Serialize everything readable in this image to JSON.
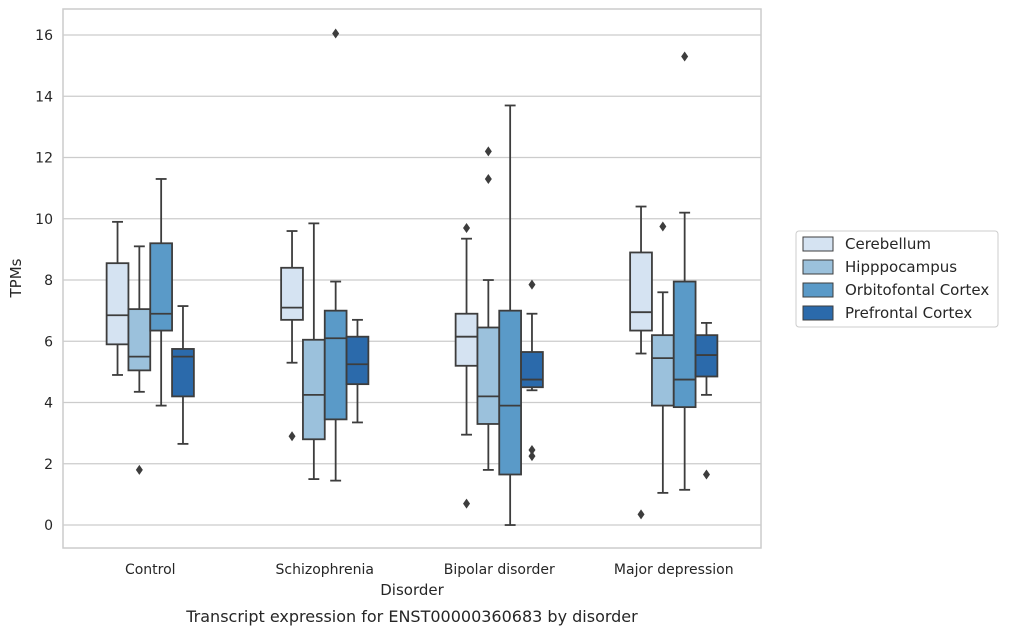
{
  "chart_data": {
    "type": "boxplot",
    "title": "",
    "caption": "Transcript expression for ENST00000360683 by disorder",
    "xlabel": "Disorder",
    "ylabel": "TPMs",
    "ylim": [
      -0.75,
      16.85
    ],
    "yticks": [
      0,
      2,
      4,
      6,
      8,
      10,
      12,
      14,
      16
    ],
    "grid": "horizontal",
    "legend_position": "right",
    "categories": [
      "Control",
      "Schizophrenia",
      "Bipolar disorder",
      "Major depression"
    ],
    "series": [
      {
        "name": "Cerebellum",
        "color": "#d5e3f2",
        "boxes": [
          {
            "whislo": 4.9,
            "q1": 5.9,
            "med": 6.85,
            "q3": 8.55,
            "whishi": 9.9,
            "fliers": []
          },
          {
            "whislo": 5.3,
            "q1": 6.7,
            "med": 7.1,
            "q3": 8.4,
            "whishi": 9.6,
            "fliers": [
              2.9
            ]
          },
          {
            "whislo": 2.95,
            "q1": 5.2,
            "med": 6.15,
            "q3": 6.9,
            "whishi": 9.35,
            "fliers": [
              0.7,
              9.7
            ]
          },
          {
            "whislo": 5.6,
            "q1": 6.35,
            "med": 6.95,
            "q3": 8.9,
            "whishi": 10.4,
            "fliers": [
              0.35
            ]
          }
        ]
      },
      {
        "name": "Hipppocampus",
        "color": "#9bc1dc",
        "boxes": [
          {
            "whislo": 4.35,
            "q1": 5.05,
            "med": 5.5,
            "q3": 7.05,
            "whishi": 9.1,
            "fliers": [
              1.8
            ]
          },
          {
            "whislo": 1.5,
            "q1": 2.8,
            "med": 4.25,
            "q3": 6.05,
            "whishi": 9.85,
            "fliers": []
          },
          {
            "whislo": 1.8,
            "q1": 3.3,
            "med": 4.2,
            "q3": 6.45,
            "whishi": 8.0,
            "fliers": [
              11.3,
              12.2
            ]
          },
          {
            "whislo": 1.05,
            "q1": 3.9,
            "med": 5.45,
            "q3": 6.2,
            "whishi": 7.6,
            "fliers": [
              9.75
            ]
          }
        ]
      },
      {
        "name": "Orbitofontal Cortex",
        "color": "#5a9ac8",
        "boxes": [
          {
            "whislo": 3.9,
            "q1": 6.35,
            "med": 6.9,
            "q3": 9.2,
            "whishi": 11.3,
            "fliers": []
          },
          {
            "whislo": 1.45,
            "q1": 3.45,
            "med": 6.1,
            "q3": 7.0,
            "whishi": 7.95,
            "fliers": [
              16.05
            ]
          },
          {
            "whislo": 0.0,
            "q1": 1.65,
            "med": 3.9,
            "q3": 7.0,
            "whishi": 13.7,
            "fliers": []
          },
          {
            "whislo": 1.15,
            "q1": 3.85,
            "med": 4.75,
            "q3": 7.95,
            "whishi": 10.2,
            "fliers": [
              15.3
            ]
          }
        ]
      },
      {
        "name": "Prefrontal Cortex",
        "color": "#2b6aab",
        "boxes": [
          {
            "whislo": 2.65,
            "q1": 4.2,
            "med": 5.5,
            "q3": 5.75,
            "whishi": 7.15,
            "fliers": []
          },
          {
            "whislo": 3.35,
            "q1": 4.6,
            "med": 5.25,
            "q3": 6.15,
            "whishi": 6.7,
            "fliers": []
          },
          {
            "whislo": 4.4,
            "q1": 4.5,
            "med": 4.75,
            "q3": 5.65,
            "whishi": 6.9,
            "fliers": [
              2.25,
              2.45,
              7.85
            ]
          },
          {
            "whislo": 4.25,
            "q1": 4.85,
            "med": 5.55,
            "q3": 6.2,
            "whishi": 6.6,
            "fliers": [
              1.65
            ]
          }
        ]
      }
    ]
  }
}
